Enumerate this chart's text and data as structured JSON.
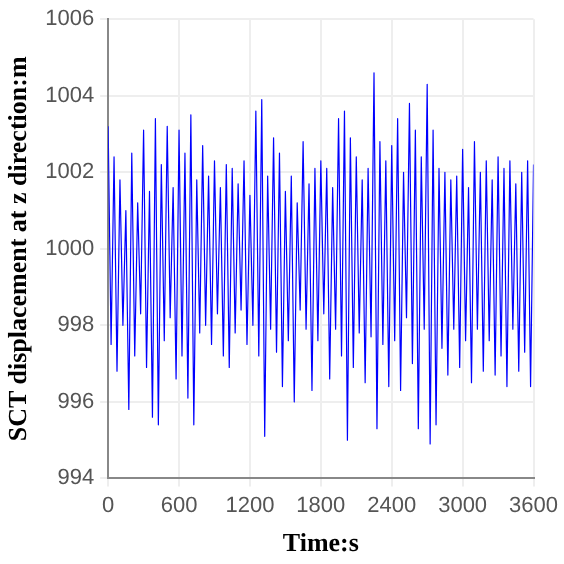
{
  "chart_data": {
    "type": "line",
    "xlabel": "Time:s",
    "ylabel": "SCT displacement at z direction:m",
    "xlim": [
      0,
      3600
    ],
    "xticks": [
      0,
      600,
      1200,
      1800,
      2400,
      3000,
      3600
    ],
    "ylim": [
      994,
      1006
    ],
    "yticks": [
      994,
      996,
      998,
      1000,
      1002,
      1004,
      1006
    ],
    "grid": true,
    "legend": false,
    "marker": "none",
    "line_style": "solid",
    "x": [
      0,
      25,
      50,
      75,
      100,
      125,
      150,
      175,
      200,
      225,
      250,
      275,
      300,
      325,
      350,
      375,
      400,
      425,
      450,
      475,
      500,
      525,
      550,
      575,
      600,
      625,
      650,
      675,
      700,
      725,
      750,
      775,
      800,
      825,
      850,
      875,
      900,
      925,
      950,
      975,
      1000,
      1025,
      1050,
      1075,
      1100,
      1125,
      1150,
      1175,
      1200,
      1225,
      1250,
      1275,
      1300,
      1325,
      1350,
      1375,
      1400,
      1425,
      1450,
      1475,
      1500,
      1525,
      1550,
      1575,
      1600,
      1625,
      1650,
      1675,
      1700,
      1725,
      1750,
      1775,
      1800,
      1825,
      1850,
      1875,
      1900,
      1925,
      1950,
      1975,
      2000,
      2025,
      2050,
      2075,
      2100,
      2125,
      2150,
      2175,
      2200,
      2225,
      2250,
      2275,
      2300,
      2325,
      2350,
      2375,
      2400,
      2425,
      2450,
      2475,
      2500,
      2525,
      2550,
      2575,
      2600,
      2625,
      2650,
      2675,
      2700,
      2725,
      2750,
      2775,
      2800,
      2825,
      2850,
      2875,
      2900,
      2925,
      2950,
      2975,
      3000,
      3025,
      3050,
      3075,
      3100,
      3125,
      3150,
      3175,
      3200,
      3225,
      3250,
      3275,
      3300,
      3325,
      3350,
      3375,
      3400,
      3425,
      3450,
      3475,
      3500,
      3525,
      3550,
      3575,
      3600
    ],
    "series": [
      {
        "color": "#0000ff",
        "values": [
          1003.2,
          997.5,
          1002.4,
          996.8,
          1001.8,
          998.0,
          1001.0,
          995.8,
          1002.5,
          997.2,
          1001.2,
          998.3,
          1003.1,
          996.9,
          1001.5,
          995.6,
          1003.4,
          995.4,
          1002.2,
          997.6,
          1003.2,
          998.2,
          1001.6,
          996.6,
          1003.1,
          997.2,
          1002.5,
          996.1,
          1003.5,
          995.4,
          1001.8,
          997.8,
          1002.7,
          998.0,
          1001.9,
          997.5,
          1002.3,
          998.3,
          1001.6,
          997.2,
          1002.2,
          996.9,
          1002.1,
          997.8,
          1001.7,
          998.4,
          1002.3,
          997.5,
          1001.4,
          998.0,
          1003.6,
          997.2,
          1003.9,
          995.1,
          1001.9,
          997.9,
          1002.9,
          997.3,
          1002.5,
          996.4,
          1001.5,
          997.6,
          1001.9,
          996.0,
          1001.2,
          998.4,
          1002.8,
          997.9,
          1001.7,
          996.3,
          1002.1,
          997.6,
          1002.3,
          998.3,
          1002.1,
          996.6,
          1001.6,
          997.9,
          1003.4,
          997.2,
          1003.6,
          995.0,
          1002.9,
          996.9,
          1002.4,
          997.8,
          1001.8,
          996.5,
          1002.1,
          997.7,
          1004.6,
          995.3,
          1002.8,
          997.5,
          1002.3,
          996.4,
          1002.7,
          997.6,
          1003.4,
          996.3,
          1002.0,
          998.2,
          1003.8,
          997.0,
          1003.1,
          995.3,
          1002.4,
          997.9,
          1004.3,
          994.9,
          1003.1,
          995.4,
          1002.1,
          997.4,
          1002.0,
          996.7,
          1001.8,
          997.9,
          1001.9,
          996.9,
          1002.6,
          997.6,
          1001.6,
          996.5,
          1002.8,
          997.9,
          1002.0,
          996.8,
          1002.3,
          997.6,
          1001.8,
          996.7,
          1002.4,
          997.2,
          1002.1,
          996.4,
          1002.3,
          997.9,
          1001.7,
          996.8,
          1002.0,
          997.3,
          1002.3,
          996.4,
          1002.2
        ]
      }
    ]
  }
}
